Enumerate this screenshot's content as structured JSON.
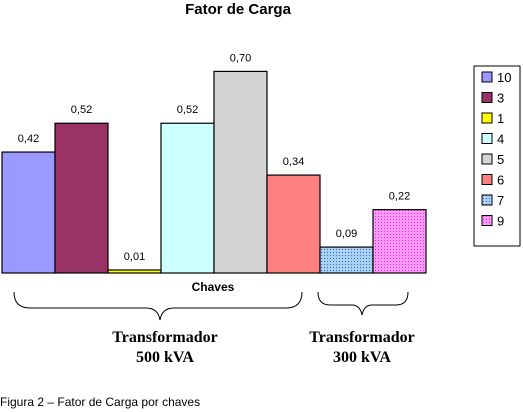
{
  "chart_data": {
    "type": "bar",
    "title": "Fator de Carga",
    "xlabel": "Chaves",
    "ylabel": "",
    "ylim": [
      0,
      0.75
    ],
    "grid": false,
    "legend_position": "right",
    "bars": [
      {
        "category": "10",
        "value": 0.42,
        "label": "0,42",
        "color": "#9999ff",
        "pattern": "solid"
      },
      {
        "category": "3",
        "value": 0.52,
        "label": "0,52",
        "color": "#993366",
        "pattern": "solid"
      },
      {
        "category": "1",
        "value": 0.01,
        "label": "0,01",
        "color": "#ffff00",
        "pattern": "solid"
      },
      {
        "category": "4",
        "value": 0.52,
        "label": "0,52",
        "color": "#ccffff",
        "pattern": "solid"
      },
      {
        "category": "5",
        "value": 0.7,
        "label": "0,70",
        "color": "#d4d4d4",
        "pattern": "solid"
      },
      {
        "category": "6",
        "value": 0.34,
        "label": "0,34",
        "color": "#ff8080",
        "pattern": "solid"
      },
      {
        "category": "7",
        "value": 0.09,
        "label": "0,09",
        "color": "#7fb4e8",
        "pattern": "dots"
      },
      {
        "category": "9",
        "value": 0.22,
        "label": "0,22",
        "color": "#ff66ff",
        "pattern": "dots"
      }
    ],
    "legend": [
      "10",
      "3",
      "1",
      "4",
      "5",
      "6",
      "7",
      "9"
    ],
    "groups": [
      {
        "line1": "Transformador",
        "line2": "500 kVA"
      },
      {
        "line1": "Transformador",
        "line2": "300 kVA"
      }
    ]
  },
  "caption": "Figura 2 – Fator de Carga por chaves"
}
